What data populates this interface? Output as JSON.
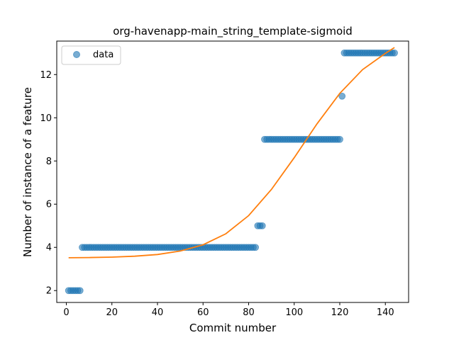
{
  "chart_data": {
    "type": "scatter",
    "title": "org-havenapp-main_string_template-sigmoid",
    "xlabel": "Commit number",
    "ylabel": "Number of instance of a feature",
    "xlim": [
      -4.2,
      150.2
    ],
    "ylim": [
      1.45,
      13.55
    ],
    "xticks": [
      0,
      20,
      40,
      60,
      80,
      100,
      120,
      140
    ],
    "yticks": [
      2,
      4,
      6,
      8,
      10,
      12
    ],
    "grid": false,
    "legend": {
      "placement": "upper-left",
      "entries": [
        "data"
      ]
    },
    "series": [
      {
        "name": "data",
        "kind": "scatter",
        "color": "#1f77b4",
        "opacity": 0.6,
        "points": [
          [
            1,
            2
          ],
          [
            2,
            2
          ],
          [
            3,
            2
          ],
          [
            4,
            2
          ],
          [
            5,
            2
          ],
          [
            6,
            2
          ],
          [
            7,
            4
          ],
          [
            8,
            4
          ],
          [
            9,
            4
          ],
          [
            10,
            4
          ],
          [
            11,
            4
          ],
          [
            12,
            4
          ],
          [
            13,
            4
          ],
          [
            14,
            4
          ],
          [
            15,
            4
          ],
          [
            16,
            4
          ],
          [
            17,
            4
          ],
          [
            18,
            4
          ],
          [
            19,
            4
          ],
          [
            20,
            4
          ],
          [
            21,
            4
          ],
          [
            22,
            4
          ],
          [
            23,
            4
          ],
          [
            24,
            4
          ],
          [
            25,
            4
          ],
          [
            26,
            4
          ],
          [
            27,
            4
          ],
          [
            28,
            4
          ],
          [
            29,
            4
          ],
          [
            30,
            4
          ],
          [
            31,
            4
          ],
          [
            32,
            4
          ],
          [
            33,
            4
          ],
          [
            34,
            4
          ],
          [
            35,
            4
          ],
          [
            36,
            4
          ],
          [
            37,
            4
          ],
          [
            38,
            4
          ],
          [
            39,
            4
          ],
          [
            40,
            4
          ],
          [
            41,
            4
          ],
          [
            42,
            4
          ],
          [
            43,
            4
          ],
          [
            44,
            4
          ],
          [
            45,
            4
          ],
          [
            46,
            4
          ],
          [
            47,
            4
          ],
          [
            48,
            4
          ],
          [
            49,
            4
          ],
          [
            50,
            4
          ],
          [
            51,
            4
          ],
          [
            52,
            4
          ],
          [
            53,
            4
          ],
          [
            54,
            4
          ],
          [
            55,
            4
          ],
          [
            56,
            4
          ],
          [
            57,
            4
          ],
          [
            58,
            4
          ],
          [
            59,
            4
          ],
          [
            60,
            4
          ],
          [
            61,
            4
          ],
          [
            62,
            4
          ],
          [
            63,
            4
          ],
          [
            64,
            4
          ],
          [
            65,
            4
          ],
          [
            66,
            4
          ],
          [
            67,
            4
          ],
          [
            68,
            4
          ],
          [
            69,
            4
          ],
          [
            70,
            4
          ],
          [
            71,
            4
          ],
          [
            72,
            4
          ],
          [
            73,
            4
          ],
          [
            74,
            4
          ],
          [
            75,
            4
          ],
          [
            76,
            4
          ],
          [
            77,
            4
          ],
          [
            78,
            4
          ],
          [
            79,
            4
          ],
          [
            80,
            4
          ],
          [
            81,
            4
          ],
          [
            82,
            4
          ],
          [
            83,
            4
          ],
          [
            84,
            5
          ],
          [
            85,
            5
          ],
          [
            86,
            5
          ],
          [
            87,
            9
          ],
          [
            88,
            9
          ],
          [
            89,
            9
          ],
          [
            90,
            9
          ],
          [
            91,
            9
          ],
          [
            92,
            9
          ],
          [
            93,
            9
          ],
          [
            94,
            9
          ],
          [
            95,
            9
          ],
          [
            96,
            9
          ],
          [
            97,
            9
          ],
          [
            98,
            9
          ],
          [
            99,
            9
          ],
          [
            100,
            9
          ],
          [
            101,
            9
          ],
          [
            102,
            9
          ],
          [
            103,
            9
          ],
          [
            104,
            9
          ],
          [
            105,
            9
          ],
          [
            106,
            9
          ],
          [
            107,
            9
          ],
          [
            108,
            9
          ],
          [
            109,
            9
          ],
          [
            110,
            9
          ],
          [
            111,
            9
          ],
          [
            112,
            9
          ],
          [
            113,
            9
          ],
          [
            114,
            9
          ],
          [
            115,
            9
          ],
          [
            116,
            9
          ],
          [
            117,
            9
          ],
          [
            118,
            9
          ],
          [
            119,
            9
          ],
          [
            120,
            9
          ],
          [
            121,
            11
          ],
          [
            122,
            13
          ],
          [
            123,
            13
          ],
          [
            124,
            13
          ],
          [
            125,
            13
          ],
          [
            126,
            13
          ],
          [
            127,
            13
          ],
          [
            128,
            13
          ],
          [
            129,
            13
          ],
          [
            130,
            13
          ],
          [
            131,
            13
          ],
          [
            132,
            13
          ],
          [
            133,
            13
          ],
          [
            134,
            13
          ],
          [
            135,
            13
          ],
          [
            136,
            13
          ],
          [
            137,
            13
          ],
          [
            138,
            13
          ],
          [
            139,
            13
          ],
          [
            140,
            13
          ],
          [
            141,
            13
          ],
          [
            142,
            13
          ],
          [
            143,
            13
          ],
          [
            144,
            13
          ]
        ]
      },
      {
        "name": "",
        "kind": "line",
        "color": "#ff7f0e",
        "points": [
          [
            1,
            3.52
          ],
          [
            10,
            3.53
          ],
          [
            20,
            3.55
          ],
          [
            30,
            3.59
          ],
          [
            40,
            3.67
          ],
          [
            50,
            3.83
          ],
          [
            60,
            4.12
          ],
          [
            70,
            4.63
          ],
          [
            80,
            5.47
          ],
          [
            90,
            6.68
          ],
          [
            100,
            8.15
          ],
          [
            110,
            9.72
          ],
          [
            120,
            11.13
          ],
          [
            130,
            12.23
          ],
          [
            140,
            12.98
          ],
          [
            144,
            13.25
          ]
        ]
      }
    ]
  }
}
